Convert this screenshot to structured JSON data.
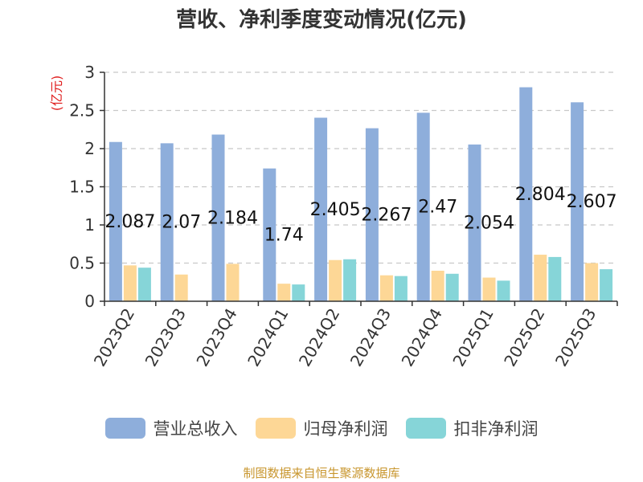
{
  "chart_data": {
    "type": "bar",
    "title": "营收、净利季度变动情况(亿元)",
    "ylabel": "(亿元)",
    "ylim": [
      0,
      3
    ],
    "yticks": [
      "0",
      "0.5",
      "1",
      "1.5",
      "2",
      "2.5",
      "3"
    ],
    "categories": [
      "2023Q2",
      "2023Q3",
      "2023Q4",
      "2024Q1",
      "2024Q2",
      "2024Q3",
      "2024Q4",
      "2025Q1",
      "2025Q2",
      "2025Q3"
    ],
    "series": [
      {
        "name": "营业总收入",
        "color": "#8eaedb",
        "values": [
          2.087,
          2.07,
          2.184,
          1.74,
          2.405,
          2.267,
          2.47,
          2.054,
          2.804,
          2.607
        ],
        "labels": [
          "2.087",
          "2.07",
          "2.184",
          "1.74",
          "2.405",
          "2.267",
          "2.47",
          "2.054",
          "2.804",
          "2.607"
        ]
      },
      {
        "name": "归母净利润",
        "color": "#fdd796",
        "values": [
          0.47,
          0.35,
          0.49,
          0.23,
          0.54,
          0.34,
          0.4,
          0.31,
          0.61,
          0.5
        ]
      },
      {
        "name": "扣非净利润",
        "color": "#86d5d8",
        "values": [
          0.44,
          null,
          null,
          0.22,
          0.55,
          0.33,
          0.36,
          0.27,
          0.58,
          0.42
        ]
      }
    ],
    "grid": true,
    "legend_position": "bottom"
  },
  "source": "制图数据来自恒生聚源数据库"
}
